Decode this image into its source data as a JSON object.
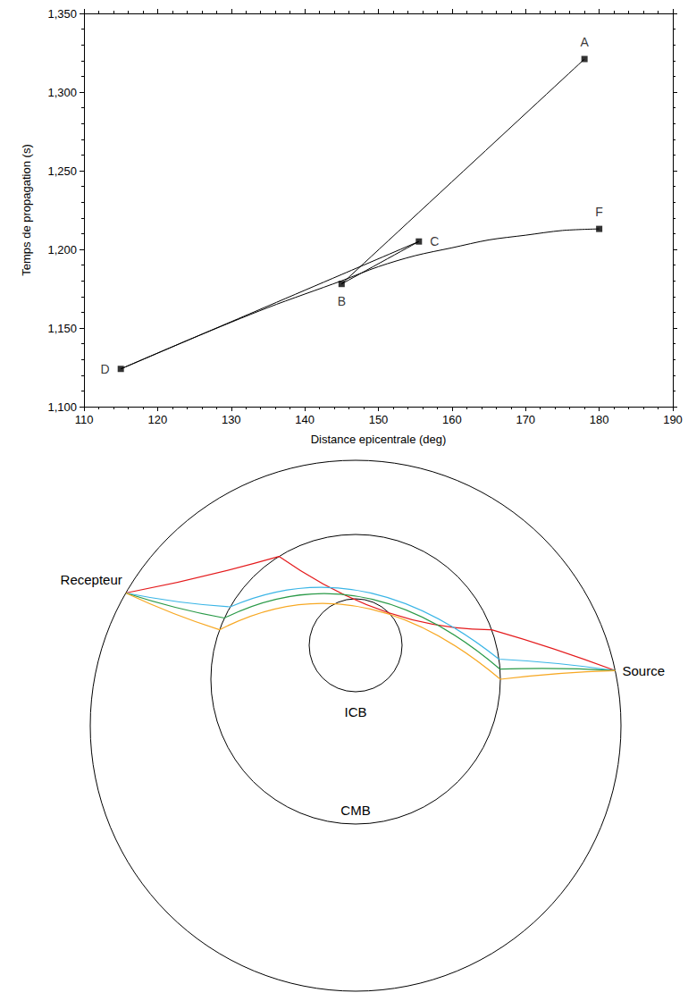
{
  "chart_data": {
    "type": "line",
    "x_label": "Distance epicentrale (deg)",
    "y_label": "Temps de propagation (s)",
    "xlim": [
      110,
      190
    ],
    "xticks": [
      110,
      120,
      130,
      140,
      150,
      160,
      170,
      180,
      190
    ],
    "ylim": [
      1100,
      1350
    ],
    "yticks": [
      1100,
      1150,
      1200,
      1250,
      1300,
      1350
    ],
    "grid": false,
    "series": [
      {
        "x": [
          178,
          145
        ],
        "values": [
          1321,
          1178
        ],
        "color": "#000000",
        "marker": "none"
      },
      {
        "x": [
          145,
          155.5
        ],
        "values": [
          1178,
          1205
        ],
        "color": "#000000",
        "marker": "none"
      },
      {
        "x": [
          115,
          135,
          145,
          155.5
        ],
        "values": [
          1124,
          1164,
          1184,
          1205
        ],
        "color": "#000000",
        "marker": "none"
      },
      {
        "x": [
          115,
          125,
          135,
          145,
          150,
          155,
          160,
          165,
          170,
          175,
          180
        ],
        "values": [
          1124,
          1144,
          1163,
          1180,
          1189,
          1196,
          1201,
          1206,
          1209,
          1212,
          1213
        ],
        "color": "#000000",
        "marker": "none"
      }
    ],
    "points": {
      "labels": [
        "A",
        "B",
        "C",
        "D",
        "F"
      ],
      "x": [
        178,
        145,
        155.5,
        115,
        180
      ],
      "values": [
        1321,
        1178,
        1205,
        1124,
        1213
      ],
      "marker": "square",
      "color": "#000000"
    }
  },
  "diagram": {
    "receiver": "Recepteur",
    "source": "Source",
    "inner_boundary": "ICB",
    "outer_boundary": "CMB",
    "rays": [
      {
        "color": "#e41a1c"
      },
      {
        "color": "#3ab5e6"
      },
      {
        "color": "#2a9a48"
      },
      {
        "color": "#f7a823"
      }
    ]
  }
}
